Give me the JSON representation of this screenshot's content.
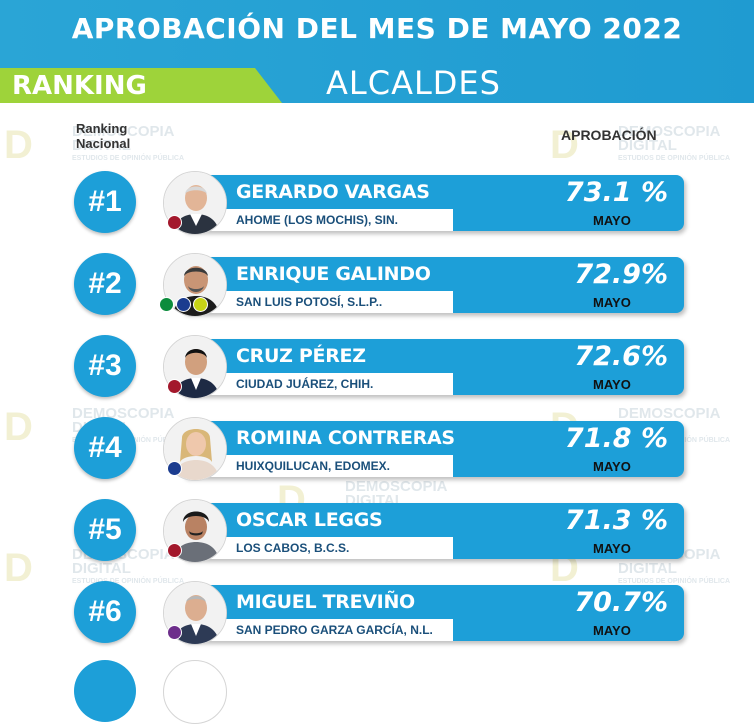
{
  "header": {
    "title": "APROBACIÓN DEL MES DE MAYO 2022",
    "tab_label": "RANKING",
    "subtitle": "ALCALDES"
  },
  "columns": {
    "rank_label_line1": "Ranking",
    "rank_label_line2": "Nacional",
    "approval_label": "APROBACIÓN"
  },
  "watermark": {
    "logo_letter": "D",
    "line1": "DEMOSCOPIA",
    "line2": "DIGITAL",
    "line3": "ESTUDIOS DE OPINIÓN PÚBLICA"
  },
  "colors": {
    "header_blue": "#1f9bd1",
    "tab_green": "#9ed33a",
    "card_blue": "#1d9fd8",
    "morena": "#a3182c",
    "pan": "#1b3c8f",
    "movimiento_ciudadano": "#6d2e8b",
    "pri": "#0b8c3c",
    "pvem": "#c7d316"
  },
  "rows": [
    {
      "rank": "#1",
      "name": "GERARDO VARGAS",
      "location": "AHOME (LOS MOCHIS), SIN.",
      "percent": "73.1 %",
      "month": "MAYO",
      "party": "morena"
    },
    {
      "rank": "#2",
      "name": "ENRIQUE GALINDO",
      "location": "SAN LUIS POTOSÍ, S.L.P..",
      "percent": "72.9%",
      "month": "MAYO",
      "party": "pri-pan-prd"
    },
    {
      "rank": "#3",
      "name": "CRUZ PÉREZ",
      "location": "CIUDAD JUÁREZ, CHIH.",
      "percent": "72.6%",
      "month": "MAYO",
      "party": "morena"
    },
    {
      "rank": "#4",
      "name": "ROMINA CONTRERAS",
      "location": "HUIXQUILUCAN, EDOMEX.",
      "percent": "71.8 %",
      "month": "MAYO",
      "party": "pan"
    },
    {
      "rank": "#5",
      "name": "OSCAR LEGGS",
      "location": "LOS CABOS, B.C.S.",
      "percent": "71.3 %",
      "month": "MAYO",
      "party": "morena"
    },
    {
      "rank": "#6",
      "name": "MIGUEL TREVIÑO",
      "location": "SAN PEDRO GARZA GARCÍA, N.L.",
      "percent": "70.7%",
      "month": "MAYO",
      "party": "movimiento-ciudadano"
    }
  ]
}
